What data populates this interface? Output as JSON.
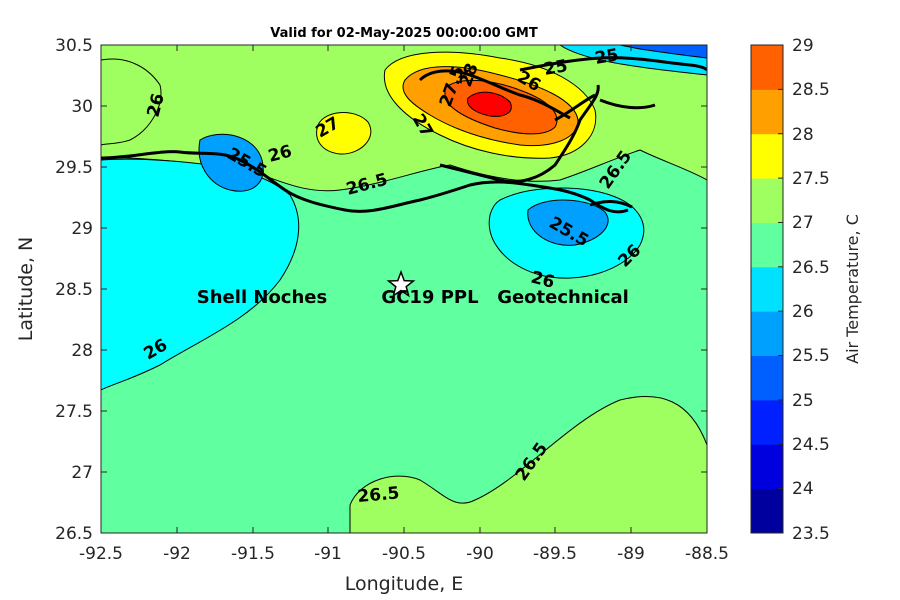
{
  "title": "Valid for 02-May-2025 00:00:00 GMT",
  "map": {
    "xlabel": "Longitude, E",
    "ylabel": "Latitude, N",
    "xlim": [
      -92.5,
      -88.5
    ],
    "ylim": [
      26.5,
      30.5
    ],
    "xticks": [
      "-92.5",
      "-92",
      "-91.5",
      "-91",
      "-90.5",
      "-90",
      "-89.5",
      "-89",
      "-88.5"
    ],
    "yticks": [
      "30.5",
      "30",
      "29.5",
      "29",
      "28.5",
      "28",
      "27.5",
      "27",
      "26.5"
    ],
    "variable": "Air Temperature",
    "units": "C",
    "site": {
      "lon": -90.53,
      "lat": 28.56,
      "labels": [
        "Shell Noches",
        "GC19 PPL",
        "Geotechnical"
      ],
      "marker": "star"
    },
    "contour_labels": [
      "26",
      "26",
      "25.5",
      "26",
      "27",
      "26.5",
      "27.5",
      "28",
      "27",
      "26",
      "25",
      "25",
      "26.5",
      "25.5",
      "26",
      "26",
      "26.5",
      "26.5"
    ]
  },
  "colorbar": {
    "label": "Air Temperature, C",
    "ticks": [
      "29",
      "28.5",
      "28",
      "27.5",
      "27",
      "26.5",
      "26",
      "25.5",
      "25",
      "24.5",
      "24",
      "23.5"
    ],
    "range": [
      23.5,
      29
    ],
    "colors": [
      "#00009f",
      "#0000df",
      "#0020ff",
      "#0060ff",
      "#00a0ff",
      "#00e0ff",
      "#60ffa0",
      "#a0ff60",
      "#ffff00",
      "#ffa000",
      "#ff6000",
      "#ff0000",
      "#a00000"
    ]
  }
}
